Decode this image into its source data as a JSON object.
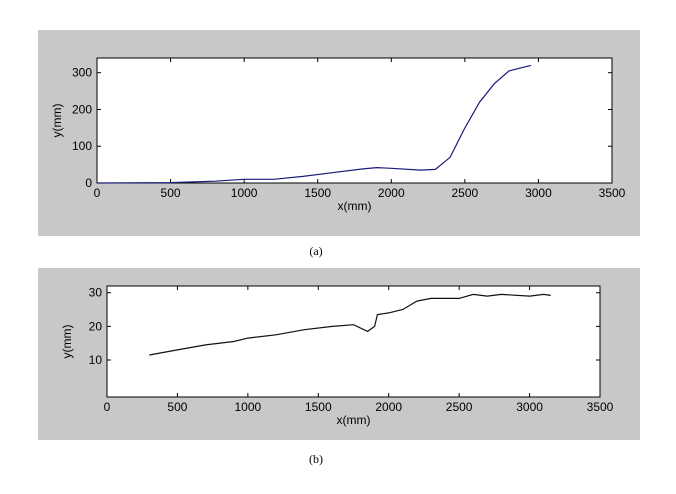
{
  "chart_data": [
    {
      "type": "line",
      "caption": "(a)",
      "xlabel": "x(mm)",
      "ylabel": "y(mm)",
      "x": [
        0,
        500,
        800,
        1000,
        1200,
        1400,
        1600,
        1800,
        1900,
        2000,
        2200,
        2300,
        2400,
        2500,
        2600,
        2700,
        2800,
        2900,
        2950
      ],
      "series": [
        {
          "color": "#1a1a7a",
          "values": [
            0,
            1,
            5,
            10,
            10,
            18,
            28,
            38,
            42,
            40,
            35,
            37,
            70,
            150,
            220,
            270,
            305,
            315,
            320
          ]
        }
      ],
      "xlim": [
        0,
        3500
      ],
      "xticks": [
        0,
        500,
        1000,
        1500,
        2000,
        2500,
        3000,
        3500
      ],
      "ylim": [
        0,
        340
      ],
      "yticks": [
        0,
        100,
        200,
        300
      ]
    },
    {
      "type": "line",
      "caption": "(b)",
      "xlabel": "x(mm)",
      "ylabel": "y(mm)",
      "x": [
        300,
        500,
        700,
        900,
        1000,
        1200,
        1400,
        1600,
        1750,
        1850,
        1900,
        1920,
        2000,
        2100,
        2200,
        2300,
        2500,
        2600,
        2700,
        2800,
        3000,
        3100,
        3150
      ],
      "series": [
        {
          "color": "#111111",
          "values": [
            11.5,
            13,
            14.5,
            15.5,
            16.5,
            17.5,
            19,
            20,
            20.5,
            18.5,
            20,
            23.5,
            24,
            25,
            27.5,
            28.3,
            28.3,
            29.5,
            29,
            29.5,
            29,
            29.5,
            29.2
          ]
        }
      ],
      "xlim": [
        0,
        3500
      ],
      "xticks": [
        0,
        500,
        1000,
        1500,
        2000,
        2500,
        3000,
        3500
      ],
      "ylim": [
        -1,
        32
      ],
      "yticks": [
        10,
        20,
        30
      ]
    }
  ]
}
